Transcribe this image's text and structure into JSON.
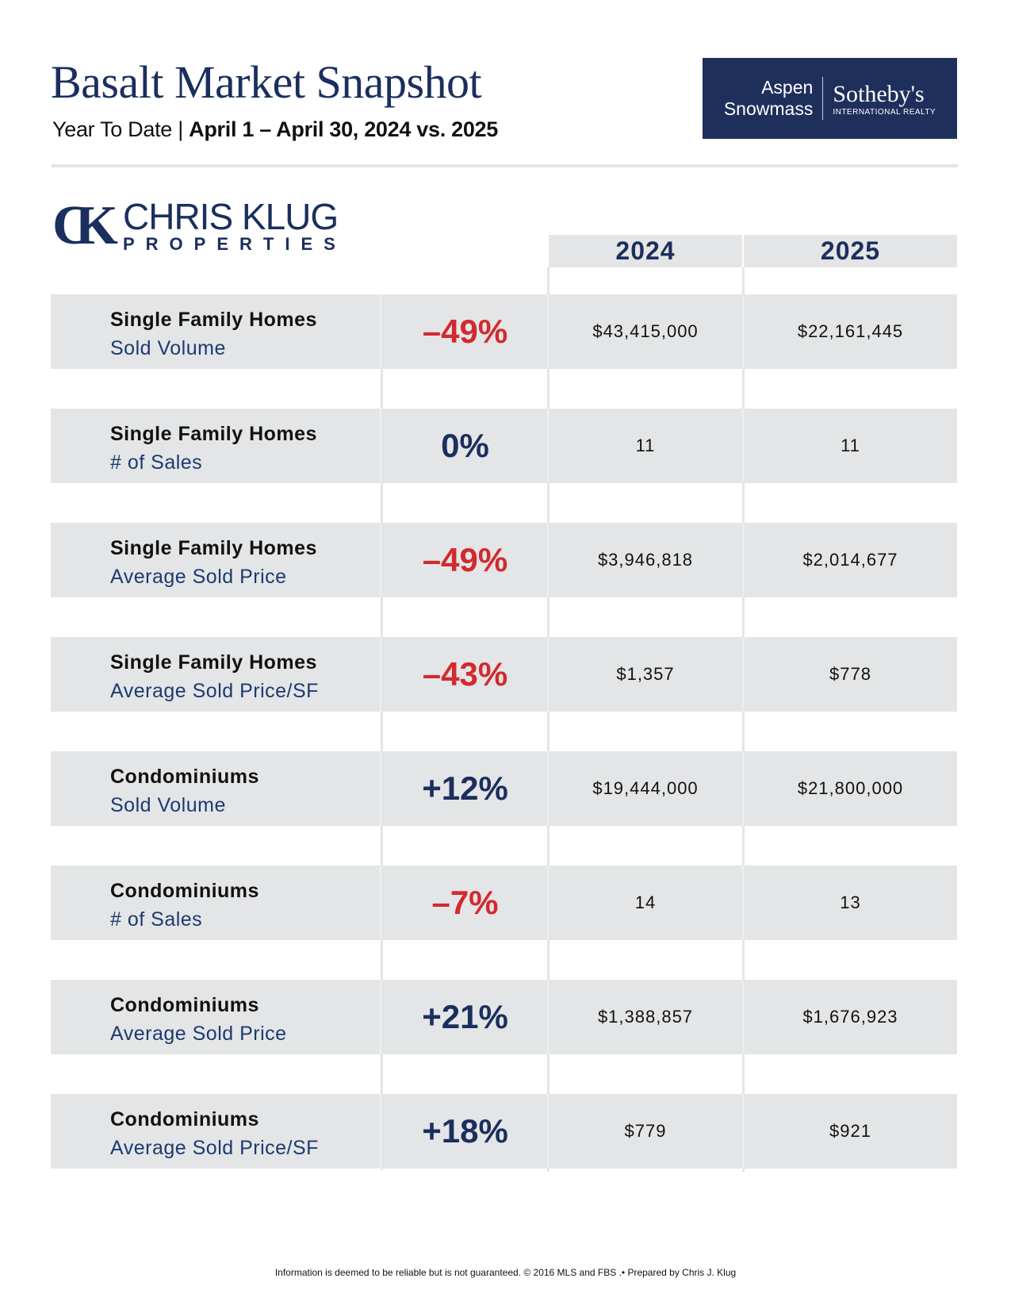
{
  "header": {
    "title": "Basalt Market Snapshot",
    "subtitle_a": "Year To Date | ",
    "subtitle_b": "April 1 – April 30, 2024 vs. 2025"
  },
  "brand": {
    "line1": "Aspen",
    "line2": "Snowmass",
    "name": "Sotheby's",
    "sub": "INTERNATIONAL REALTY"
  },
  "logo": {
    "monogram": "CK",
    "name": "CHRIS KLUG",
    "sub": "PROPERTIES"
  },
  "columns": [
    "2024",
    "2025"
  ],
  "colors": {
    "negative": "#d22a2f",
    "positive": "#1b2f5e",
    "neutral": "#1b2f5e"
  },
  "rows": [
    {
      "category": "Single Family Homes",
      "metric": "Sold Volume",
      "change": "–49%",
      "trend": "negative",
      "v2024": "$43,415,000",
      "v2025": "$22,161,445"
    },
    {
      "category": "Single Family Homes",
      "metric": "# of Sales",
      "change": "0%",
      "trend": "neutral",
      "v2024": "11",
      "v2025": "11"
    },
    {
      "category": "Single Family Homes",
      "metric": "Average Sold Price",
      "change": "–49%",
      "trend": "negative",
      "v2024": "$3,946,818",
      "v2025": "$2,014,677"
    },
    {
      "category": "Single Family Homes",
      "metric": "Average Sold Price/SF",
      "change": "–43%",
      "trend": "negative",
      "v2024": "$1,357",
      "v2025": "$778"
    },
    {
      "category": "Condominiums",
      "metric": "Sold Volume",
      "change": "+12%",
      "trend": "positive",
      "v2024": "$19,444,000",
      "v2025": "$21,800,000"
    },
    {
      "category": "Condominiums",
      "metric": "# of Sales",
      "change": "–7%",
      "trend": "negative",
      "v2024": "14",
      "v2025": "13"
    },
    {
      "category": "Condominiums",
      "metric": "Average Sold Price",
      "change": "+21%",
      "trend": "positive",
      "v2024": "$1,388,857",
      "v2025": "$1,676,923"
    },
    {
      "category": "Condominiums",
      "metric": "Average Sold Price/SF",
      "change": "+18%",
      "trend": "positive",
      "v2024": "$779",
      "v2025": "$921"
    }
  ],
  "footer": "Information is deemed to be reliable but is not guaranteed. © 2016 MLS and FBS .• Prepared by Chris J. Klug"
}
